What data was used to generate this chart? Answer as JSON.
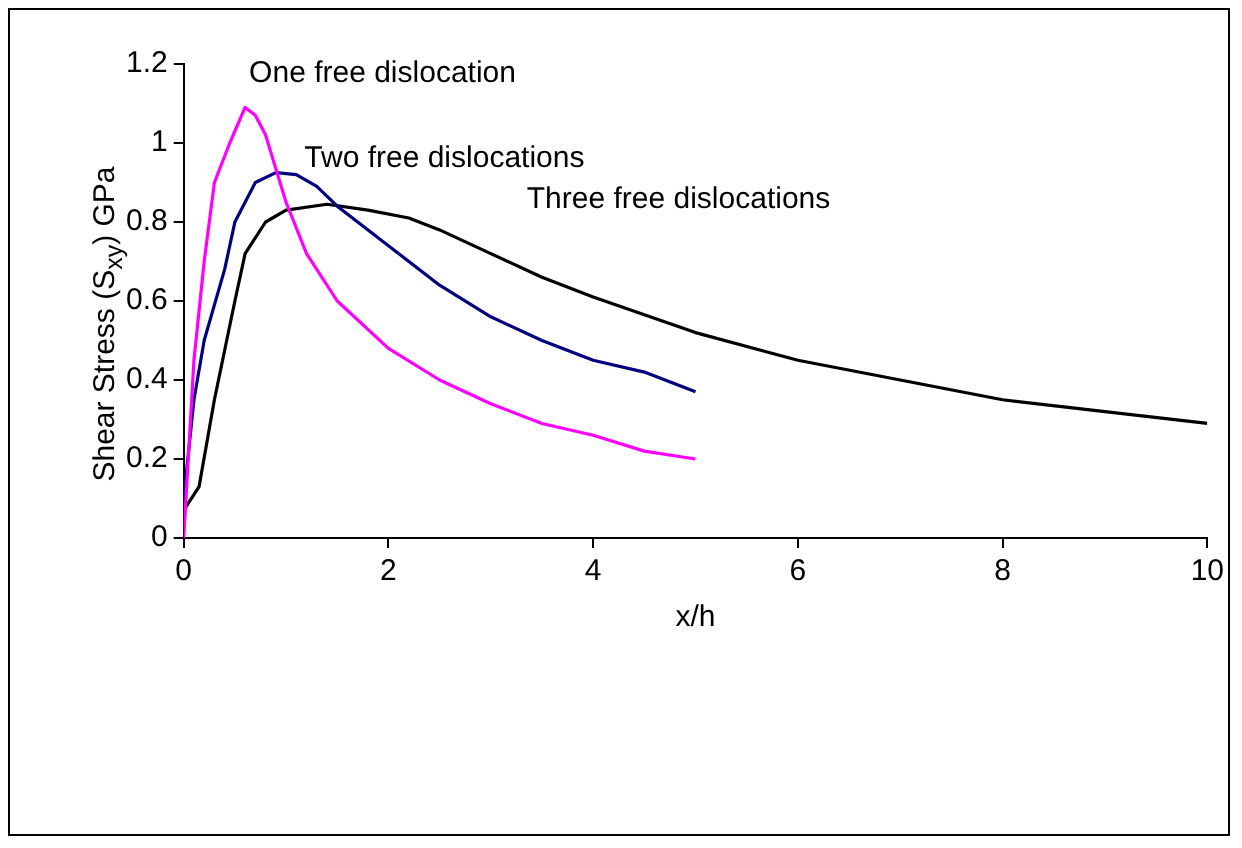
{
  "chart_data": {
    "type": "line",
    "xlabel": "x/h",
    "ylabel": "Shear Stress (S$_{xy}$) GPa",
    "xlim": [
      0,
      10
    ],
    "xticks": [
      0,
      2,
      4,
      6,
      8,
      10
    ],
    "ylim": [
      0,
      1.2
    ],
    "yticks": [
      0,
      0.2,
      0.4,
      0.6,
      0.8,
      1,
      1.2
    ],
    "grid": false,
    "legend": false,
    "marker": "none",
    "line_style": "solid",
    "series": [
      {
        "name": "One free dislocation",
        "color": "#ff00ff",
        "x": [
          0,
          0.1,
          0.2,
          0.3,
          0.45,
          0.6,
          0.7,
          0.8,
          1.0,
          1.2,
          1.5,
          2,
          2.5,
          3,
          3.5,
          4,
          4.5,
          5
        ],
        "values": [
          0,
          0.45,
          0.7,
          0.9,
          1.0,
          1.09,
          1.07,
          1.02,
          0.85,
          0.72,
          0.6,
          0.48,
          0.4,
          0.34,
          0.29,
          0.26,
          0.22,
          0.2
        ]
      },
      {
        "name": "Two free dislocations",
        "color": "#000080",
        "x": [
          0,
          0.1,
          0.2,
          0.4,
          0.5,
          0.7,
          0.9,
          1.1,
          1.3,
          1.5,
          2,
          2.5,
          3,
          3.5,
          4,
          4.5,
          5
        ],
        "values": [
          0.1,
          0.35,
          0.5,
          0.68,
          0.8,
          0.9,
          0.925,
          0.92,
          0.89,
          0.84,
          0.74,
          0.64,
          0.56,
          0.5,
          0.45,
          0.42,
          0.37
        ]
      },
      {
        "name": "Three free dislocations",
        "color": "#000000",
        "x": [
          0,
          0.15,
          0.3,
          0.5,
          0.6,
          0.8,
          1.0,
          1.4,
          1.8,
          2.2,
          2.5,
          3,
          3.5,
          4,
          5,
          6,
          7,
          8,
          9,
          10
        ],
        "values": [
          0.07,
          0.13,
          0.35,
          0.6,
          0.72,
          0.8,
          0.83,
          0.845,
          0.83,
          0.81,
          0.78,
          0.72,
          0.66,
          0.61,
          0.52,
          0.45,
          0.4,
          0.35,
          0.32,
          0.29
        ]
      }
    ]
  }
}
